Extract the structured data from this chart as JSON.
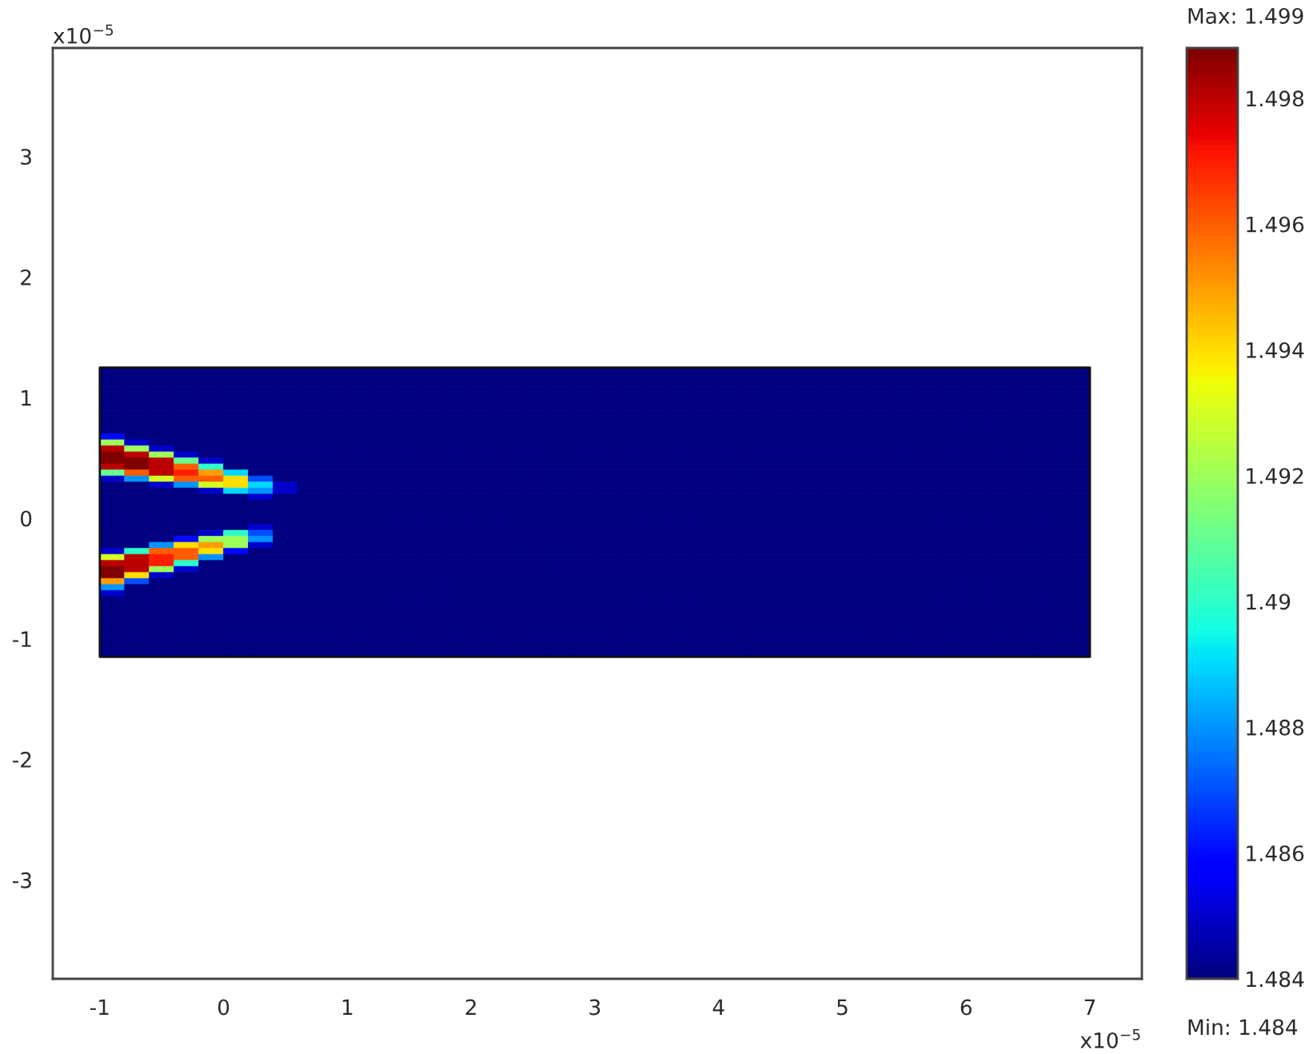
{
  "chart_data": {
    "type": "heatmap",
    "x": [
      -0.9,
      -0.7,
      -0.5,
      -0.3,
      -0.1,
      0.1,
      0.3,
      0.5,
      0.7,
      0.9,
      1.1,
      1.3,
      1.5,
      1.7,
      1.9,
      2.1,
      2.3,
      2.5,
      2.7,
      2.9,
      3.1,
      3.3,
      3.5,
      3.7,
      3.9,
      4.1,
      4.3,
      4.5,
      4.7,
      4.9,
      5.1,
      5.3,
      5.5,
      5.7,
      5.9,
      6.1,
      6.3,
      6.5,
      6.7,
      6.9
    ],
    "y": [
      1.225,
      1.175,
      1.125,
      1.075,
      1.025,
      0.975,
      0.925,
      0.875,
      0.825,
      0.775,
      0.725,
      0.675,
      0.625,
      0.575,
      0.525,
      0.475,
      0.425,
      0.375,
      0.325,
      0.275,
      0.225,
      0.175,
      0.125,
      0.075,
      0.025,
      -0.025,
      -0.075,
      -0.125,
      -0.175,
      -0.225,
      -0.275,
      -0.325,
      -0.375,
      -0.425,
      -0.475,
      -0.525,
      -0.575,
      -0.625,
      -0.675,
      -0.725,
      -0.775,
      -0.825,
      -0.875,
      -0.925,
      -0.975,
      -1.025,
      -1.075,
      -1.125
    ],
    "cells": [
      [
        1.484,
        1.484,
        1.484,
        1.484,
        1.484,
        1.484,
        1.484,
        1.484,
        1.484,
        1.484,
        1.484,
        1.484,
        1.484,
        1.484,
        1.484,
        1.484,
        1.484,
        1.484,
        1.484,
        1.484,
        1.484,
        1.484,
        1.484,
        1.484,
        1.484,
        1.484,
        1.484,
        1.484,
        1.484,
        1.484,
        1.484,
        1.484,
        1.484,
        1.484,
        1.484,
        1.484,
        1.484,
        1.484,
        1.484,
        1.484
      ],
      [
        1.484,
        1.484,
        1.484,
        1.484,
        1.484,
        1.484,
        1.484,
        1.484,
        1.484,
        1.484,
        1.484,
        1.484,
        1.484,
        1.484,
        1.484,
        1.484,
        1.484,
        1.484,
        1.484,
        1.484,
        1.484,
        1.484,
        1.484,
        1.484,
        1.484,
        1.484,
        1.484,
        1.484,
        1.484,
        1.484,
        1.484,
        1.484,
        1.484,
        1.484,
        1.484,
        1.484,
        1.484,
        1.484,
        1.484,
        1.484
      ],
      [
        1.484,
        1.484,
        1.484,
        1.484,
        1.484,
        1.484,
        1.484,
        1.484,
        1.484,
        1.484,
        1.484,
        1.484,
        1.484,
        1.484,
        1.484,
        1.484,
        1.484,
        1.484,
        1.484,
        1.484,
        1.484,
        1.484,
        1.484,
        1.484,
        1.484,
        1.484,
        1.484,
        1.484,
        1.484,
        1.484,
        1.484,
        1.484,
        1.484,
        1.484,
        1.484,
        1.484,
        1.484,
        1.484,
        1.484,
        1.484
      ],
      [
        1.484,
        1.484,
        1.484,
        1.484,
        1.484,
        1.484,
        1.484,
        1.484,
        1.484,
        1.484,
        1.484,
        1.484,
        1.484,
        1.484,
        1.484,
        1.484,
        1.484,
        1.484,
        1.484,
        1.484,
        1.484,
        1.484,
        1.484,
        1.484,
        1.484,
        1.484,
        1.484,
        1.484,
        1.484,
        1.484,
        1.484,
        1.484,
        1.484,
        1.484,
        1.484,
        1.484,
        1.484,
        1.484,
        1.484,
        1.484
      ],
      [
        1.484,
        1.484,
        1.484,
        1.484,
        1.484,
        1.484,
        1.484,
        1.484,
        1.484,
        1.484,
        1.484,
        1.484,
        1.484,
        1.484,
        1.484,
        1.484,
        1.484,
        1.484,
        1.484,
        1.484,
        1.484,
        1.484,
        1.484,
        1.484,
        1.484,
        1.484,
        1.484,
        1.484,
        1.484,
        1.484,
        1.484,
        1.484,
        1.484,
        1.484,
        1.484,
        1.484,
        1.484,
        1.484,
        1.484,
        1.484
      ],
      [
        1.484,
        1.484,
        1.484,
        1.484,
        1.484,
        1.484,
        1.484,
        1.484,
        1.484,
        1.484,
        1.484,
        1.484,
        1.484,
        1.484,
        1.484,
        1.484,
        1.484,
        1.484,
        1.484,
        1.484,
        1.484,
        1.484,
        1.484,
        1.484,
        1.484,
        1.484,
        1.484,
        1.484,
        1.484,
        1.484,
        1.484,
        1.484,
        1.484,
        1.484,
        1.484,
        1.484,
        1.484,
        1.484,
        1.484,
        1.484
      ],
      [
        1.484,
        1.484,
        1.484,
        1.484,
        1.484,
        1.484,
        1.484,
        1.484,
        1.484,
        1.484,
        1.484,
        1.484,
        1.484,
        1.484,
        1.484,
        1.484,
        1.484,
        1.484,
        1.484,
        1.484,
        1.484,
        1.484,
        1.484,
        1.484,
        1.484,
        1.484,
        1.484,
        1.484,
        1.484,
        1.484,
        1.484,
        1.484,
        1.484,
        1.484,
        1.484,
        1.484,
        1.484,
        1.484,
        1.484,
        1.484
      ],
      [
        1.484,
        1.484,
        1.484,
        1.484,
        1.484,
        1.484,
        1.484,
        1.484,
        1.484,
        1.484,
        1.484,
        1.484,
        1.484,
        1.484,
        1.484,
        1.484,
        1.484,
        1.484,
        1.484,
        1.484,
        1.484,
        1.484,
        1.484,
        1.484,
        1.484,
        1.484,
        1.484,
        1.484,
        1.484,
        1.484,
        1.484,
        1.484,
        1.484,
        1.484,
        1.484,
        1.484,
        1.484,
        1.484,
        1.484,
        1.484
      ],
      [
        1.484,
        1.484,
        1.484,
        1.484,
        1.484,
        1.484,
        1.484,
        1.484,
        1.484,
        1.484,
        1.484,
        1.484,
        1.484,
        1.484,
        1.484,
        1.484,
        1.484,
        1.484,
        1.484,
        1.484,
        1.484,
        1.484,
        1.484,
        1.484,
        1.484,
        1.484,
        1.484,
        1.484,
        1.484,
        1.484,
        1.484,
        1.484,
        1.484,
        1.484,
        1.484,
        1.484,
        1.484,
        1.484,
        1.484,
        1.484
      ],
      [
        1.484,
        1.484,
        1.484,
        1.484,
        1.484,
        1.484,
        1.484,
        1.484,
        1.484,
        1.484,
        1.484,
        1.484,
        1.484,
        1.484,
        1.484,
        1.484,
        1.484,
        1.484,
        1.484,
        1.484,
        1.484,
        1.484,
        1.484,
        1.484,
        1.484,
        1.484,
        1.484,
        1.484,
        1.484,
        1.484,
        1.484,
        1.484,
        1.484,
        1.484,
        1.484,
        1.484,
        1.484,
        1.484,
        1.484,
        1.484
      ],
      [
        1.484,
        1.484,
        1.484,
        1.484,
        1.484,
        1.484,
        1.484,
        1.484,
        1.484,
        1.484,
        1.484,
        1.484,
        1.484,
        1.484,
        1.484,
        1.484,
        1.484,
        1.484,
        1.484,
        1.484,
        1.484,
        1.484,
        1.484,
        1.484,
        1.484,
        1.484,
        1.484,
        1.484,
        1.484,
        1.484,
        1.484,
        1.484,
        1.484,
        1.484,
        1.484,
        1.484,
        1.484,
        1.484,
        1.484,
        1.484
      ],
      [
        1.486,
        1.484,
        1.484,
        1.484,
        1.484,
        1.484,
        1.484,
        1.484,
        1.484,
        1.484,
        1.484,
        1.484,
        1.484,
        1.484,
        1.484,
        1.484,
        1.484,
        1.484,
        1.484,
        1.484,
        1.484,
        1.484,
        1.484,
        1.484,
        1.484,
        1.484,
        1.484,
        1.484,
        1.484,
        1.484,
        1.484,
        1.484,
        1.484,
        1.484,
        1.484,
        1.484,
        1.484,
        1.484,
        1.484,
        1.484
      ],
      [
        1.492,
        1.485,
        1.484,
        1.484,
        1.484,
        1.484,
        1.484,
        1.484,
        1.484,
        1.484,
        1.484,
        1.484,
        1.484,
        1.484,
        1.484,
        1.484,
        1.484,
        1.484,
        1.484,
        1.484,
        1.484,
        1.484,
        1.484,
        1.484,
        1.484,
        1.484,
        1.484,
        1.484,
        1.484,
        1.484,
        1.484,
        1.484,
        1.484,
        1.484,
        1.484,
        1.484,
        1.484,
        1.484,
        1.484,
        1.484
      ],
      [
        1.498,
        1.492,
        1.485,
        1.484,
        1.484,
        1.484,
        1.484,
        1.484,
        1.484,
        1.484,
        1.484,
        1.484,
        1.484,
        1.484,
        1.484,
        1.484,
        1.484,
        1.484,
        1.484,
        1.484,
        1.484,
        1.484,
        1.484,
        1.484,
        1.484,
        1.484,
        1.484,
        1.484,
        1.484,
        1.484,
        1.484,
        1.484,
        1.484,
        1.484,
        1.484,
        1.484,
        1.484,
        1.484,
        1.484,
        1.484
      ],
      [
        1.4988,
        1.498,
        1.492,
        1.485,
        1.484,
        1.484,
        1.484,
        1.484,
        1.484,
        1.484,
        1.484,
        1.484,
        1.484,
        1.484,
        1.484,
        1.484,
        1.484,
        1.484,
        1.484,
        1.484,
        1.484,
        1.484,
        1.484,
        1.484,
        1.484,
        1.484,
        1.484,
        1.484,
        1.484,
        1.484,
        1.484,
        1.484,
        1.484,
        1.484,
        1.484,
        1.484,
        1.484,
        1.484,
        1.484,
        1.484
      ],
      [
        1.4988,
        1.4988,
        1.498,
        1.491,
        1.485,
        1.484,
        1.484,
        1.484,
        1.484,
        1.484,
        1.484,
        1.484,
        1.484,
        1.484,
        1.484,
        1.484,
        1.484,
        1.484,
        1.484,
        1.484,
        1.484,
        1.484,
        1.484,
        1.484,
        1.484,
        1.484,
        1.484,
        1.484,
        1.484,
        1.484,
        1.484,
        1.484,
        1.484,
        1.484,
        1.484,
        1.484,
        1.484,
        1.484,
        1.484,
        1.484
      ],
      [
        1.498,
        1.4988,
        1.498,
        1.496,
        1.49,
        1.484,
        1.484,
        1.484,
        1.484,
        1.484,
        1.484,
        1.484,
        1.484,
        1.484,
        1.484,
        1.484,
        1.484,
        1.484,
        1.484,
        1.484,
        1.484,
        1.484,
        1.484,
        1.484,
        1.484,
        1.484,
        1.484,
        1.484,
        1.484,
        1.484,
        1.484,
        1.484,
        1.484,
        1.484,
        1.484,
        1.484,
        1.484,
        1.484,
        1.484,
        1.484
      ],
      [
        1.491,
        1.496,
        1.498,
        1.497,
        1.495,
        1.489,
        1.484,
        1.484,
        1.484,
        1.484,
        1.484,
        1.484,
        1.484,
        1.484,
        1.484,
        1.484,
        1.484,
        1.484,
        1.484,
        1.484,
        1.484,
        1.484,
        1.484,
        1.484,
        1.484,
        1.484,
        1.484,
        1.484,
        1.484,
        1.484,
        1.484,
        1.484,
        1.484,
        1.484,
        1.484,
        1.484,
        1.484,
        1.484,
        1.484,
        1.484
      ],
      [
        1.485,
        1.488,
        1.493,
        1.496,
        1.496,
        1.494,
        1.487,
        1.484,
        1.484,
        1.484,
        1.484,
        1.484,
        1.484,
        1.484,
        1.484,
        1.484,
        1.484,
        1.484,
        1.484,
        1.484,
        1.484,
        1.484,
        1.484,
        1.484,
        1.484,
        1.484,
        1.484,
        1.484,
        1.484,
        1.484,
        1.484,
        1.484,
        1.484,
        1.484,
        1.484,
        1.484,
        1.484,
        1.484,
        1.484,
        1.484
      ],
      [
        1.484,
        1.484,
        1.485,
        1.488,
        1.493,
        1.494,
        1.489,
        1.485,
        1.484,
        1.484,
        1.484,
        1.484,
        1.484,
        1.484,
        1.484,
        1.484,
        1.484,
        1.484,
        1.484,
        1.484,
        1.484,
        1.484,
        1.484,
        1.484,
        1.484,
        1.484,
        1.484,
        1.484,
        1.484,
        1.484,
        1.484,
        1.484,
        1.484,
        1.484,
        1.484,
        1.484,
        1.484,
        1.484,
        1.484,
        1.484
      ],
      [
        1.484,
        1.484,
        1.484,
        1.484,
        1.485,
        1.489,
        1.488,
        1.485,
        1.484,
        1.484,
        1.484,
        1.484,
        1.484,
        1.484,
        1.484,
        1.484,
        1.484,
        1.484,
        1.484,
        1.484,
        1.484,
        1.484,
        1.484,
        1.484,
        1.484,
        1.484,
        1.484,
        1.484,
        1.484,
        1.484,
        1.484,
        1.484,
        1.484,
        1.484,
        1.484,
        1.484,
        1.484,
        1.484,
        1.484,
        1.484
      ],
      [
        1.484,
        1.484,
        1.484,
        1.484,
        1.484,
        1.484,
        1.485,
        1.484,
        1.484,
        1.484,
        1.484,
        1.484,
        1.484,
        1.484,
        1.484,
        1.484,
        1.484,
        1.484,
        1.484,
        1.484,
        1.484,
        1.484,
        1.484,
        1.484,
        1.484,
        1.484,
        1.484,
        1.484,
        1.484,
        1.484,
        1.484,
        1.484,
        1.484,
        1.484,
        1.484,
        1.484,
        1.484,
        1.484,
        1.484,
        1.484
      ],
      [
        1.484,
        1.484,
        1.484,
        1.484,
        1.484,
        1.484,
        1.484,
        1.484,
        1.484,
        1.484,
        1.484,
        1.484,
        1.484,
        1.484,
        1.484,
        1.484,
        1.484,
        1.484,
        1.484,
        1.484,
        1.484,
        1.484,
        1.484,
        1.484,
        1.484,
        1.484,
        1.484,
        1.484,
        1.484,
        1.484,
        1.484,
        1.484,
        1.484,
        1.484,
        1.484,
        1.484,
        1.484,
        1.484,
        1.484,
        1.484
      ],
      [
        1.484,
        1.484,
        1.484,
        1.484,
        1.484,
        1.484,
        1.484,
        1.484,
        1.484,
        1.484,
        1.484,
        1.484,
        1.484,
        1.484,
        1.484,
        1.484,
        1.484,
        1.484,
        1.484,
        1.484,
        1.484,
        1.484,
        1.484,
        1.484,
        1.484,
        1.484,
        1.484,
        1.484,
        1.484,
        1.484,
        1.484,
        1.484,
        1.484,
        1.484,
        1.484,
        1.484,
        1.484,
        1.484,
        1.484,
        1.484
      ],
      [
        1.484,
        1.484,
        1.484,
        1.484,
        1.484,
        1.484,
        1.484,
        1.484,
        1.484,
        1.484,
        1.484,
        1.484,
        1.484,
        1.484,
        1.484,
        1.484,
        1.484,
        1.484,
        1.484,
        1.484,
        1.484,
        1.484,
        1.484,
        1.484,
        1.484,
        1.484,
        1.484,
        1.484,
        1.484,
        1.484,
        1.484,
        1.484,
        1.484,
        1.484,
        1.484,
        1.484,
        1.484,
        1.484,
        1.484,
        1.484
      ],
      [
        1.484,
        1.484,
        1.484,
        1.484,
        1.484,
        1.484,
        1.484,
        1.484,
        1.484,
        1.484,
        1.484,
        1.484,
        1.484,
        1.484,
        1.484,
        1.484,
        1.484,
        1.484,
        1.484,
        1.484,
        1.484,
        1.484,
        1.484,
        1.484,
        1.484,
        1.484,
        1.484,
        1.484,
        1.484,
        1.484,
        1.484,
        1.484,
        1.484,
        1.484,
        1.484,
        1.484,
        1.484,
        1.484,
        1.484,
        1.484
      ],
      [
        1.484,
        1.484,
        1.484,
        1.484,
        1.484,
        1.484,
        1.485,
        1.484,
        1.484,
        1.484,
        1.484,
        1.484,
        1.484,
        1.484,
        1.484,
        1.484,
        1.484,
        1.484,
        1.484,
        1.484,
        1.484,
        1.484,
        1.484,
        1.484,
        1.484,
        1.484,
        1.484,
        1.484,
        1.484,
        1.484,
        1.484,
        1.484,
        1.484,
        1.484,
        1.484,
        1.484,
        1.484,
        1.484,
        1.484,
        1.484
      ],
      [
        1.484,
        1.484,
        1.484,
        1.484,
        1.485,
        1.49,
        1.487,
        1.484,
        1.484,
        1.484,
        1.484,
        1.484,
        1.484,
        1.484,
        1.484,
        1.484,
        1.484,
        1.484,
        1.484,
        1.484,
        1.484,
        1.484,
        1.484,
        1.484,
        1.484,
        1.484,
        1.484,
        1.484,
        1.484,
        1.484,
        1.484,
        1.484,
        1.484,
        1.484,
        1.484,
        1.484,
        1.484,
        1.484,
        1.484,
        1.484
      ],
      [
        1.484,
        1.484,
        1.484,
        1.486,
        1.492,
        1.492,
        1.488,
        1.484,
        1.484,
        1.484,
        1.484,
        1.484,
        1.484,
        1.484,
        1.484,
        1.484,
        1.484,
        1.484,
        1.484,
        1.484,
        1.484,
        1.484,
        1.484,
        1.484,
        1.484,
        1.484,
        1.484,
        1.484,
        1.484,
        1.484,
        1.484,
        1.484,
        1.484,
        1.484,
        1.484,
        1.484,
        1.484,
        1.484,
        1.484,
        1.484
      ],
      [
        1.484,
        1.484,
        1.488,
        1.494,
        1.495,
        1.492,
        1.485,
        1.484,
        1.484,
        1.484,
        1.484,
        1.484,
        1.484,
        1.484,
        1.484,
        1.484,
        1.484,
        1.484,
        1.484,
        1.484,
        1.484,
        1.484,
        1.484,
        1.484,
        1.484,
        1.484,
        1.484,
        1.484,
        1.484,
        1.484,
        1.484,
        1.484,
        1.484,
        1.484,
        1.484,
        1.484,
        1.484,
        1.484,
        1.484,
        1.484
      ],
      [
        1.485,
        1.49,
        1.496,
        1.496,
        1.494,
        1.486,
        1.484,
        1.484,
        1.484,
        1.484,
        1.484,
        1.484,
        1.484,
        1.484,
        1.484,
        1.484,
        1.484,
        1.484,
        1.484,
        1.484,
        1.484,
        1.484,
        1.484,
        1.484,
        1.484,
        1.484,
        1.484,
        1.484,
        1.484,
        1.484,
        1.484,
        1.484,
        1.484,
        1.484,
        1.484,
        1.484,
        1.484,
        1.484,
        1.484,
        1.484
      ],
      [
        1.493,
        1.498,
        1.497,
        1.496,
        1.488,
        1.484,
        1.484,
        1.484,
        1.484,
        1.484,
        1.484,
        1.484,
        1.484,
        1.484,
        1.484,
        1.484,
        1.484,
        1.484,
        1.484,
        1.484,
        1.484,
        1.484,
        1.484,
        1.484,
        1.484,
        1.484,
        1.484,
        1.484,
        1.484,
        1.484,
        1.484,
        1.484,
        1.484,
        1.484,
        1.484,
        1.484,
        1.484,
        1.484,
        1.484,
        1.484
      ],
      [
        1.498,
        1.498,
        1.497,
        1.49,
        1.484,
        1.484,
        1.484,
        1.484,
        1.484,
        1.484,
        1.484,
        1.484,
        1.484,
        1.484,
        1.484,
        1.484,
        1.484,
        1.484,
        1.484,
        1.484,
        1.484,
        1.484,
        1.484,
        1.484,
        1.484,
        1.484,
        1.484,
        1.484,
        1.484,
        1.484,
        1.484,
        1.484,
        1.484,
        1.484,
        1.484,
        1.484,
        1.484,
        1.484,
        1.484,
        1.484
      ],
      [
        1.4988,
        1.498,
        1.492,
        1.485,
        1.484,
        1.484,
        1.484,
        1.484,
        1.484,
        1.484,
        1.484,
        1.484,
        1.484,
        1.484,
        1.484,
        1.484,
        1.484,
        1.484,
        1.484,
        1.484,
        1.484,
        1.484,
        1.484,
        1.484,
        1.484,
        1.484,
        1.484,
        1.484,
        1.484,
        1.484,
        1.484,
        1.484,
        1.484,
        1.484,
        1.484,
        1.484,
        1.484,
        1.484,
        1.484,
        1.484
      ],
      [
        1.4988,
        1.494,
        1.485,
        1.484,
        1.484,
        1.484,
        1.484,
        1.484,
        1.484,
        1.484,
        1.484,
        1.484,
        1.484,
        1.484,
        1.484,
        1.484,
        1.484,
        1.484,
        1.484,
        1.484,
        1.484,
        1.484,
        1.484,
        1.484,
        1.484,
        1.484,
        1.484,
        1.484,
        1.484,
        1.484,
        1.484,
        1.484,
        1.484,
        1.484,
        1.484,
        1.484,
        1.484,
        1.484,
        1.484,
        1.484
      ],
      [
        1.495,
        1.487,
        1.484,
        1.484,
        1.484,
        1.484,
        1.484,
        1.484,
        1.484,
        1.484,
        1.484,
        1.484,
        1.484,
        1.484,
        1.484,
        1.484,
        1.484,
        1.484,
        1.484,
        1.484,
        1.484,
        1.484,
        1.484,
        1.484,
        1.484,
        1.484,
        1.484,
        1.484,
        1.484,
        1.484,
        1.484,
        1.484,
        1.484,
        1.484,
        1.484,
        1.484,
        1.484,
        1.484,
        1.484,
        1.484
      ],
      [
        1.488,
        1.484,
        1.484,
        1.484,
        1.484,
        1.484,
        1.484,
        1.484,
        1.484,
        1.484,
        1.484,
        1.484,
        1.484,
        1.484,
        1.484,
        1.484,
        1.484,
        1.484,
        1.484,
        1.484,
        1.484,
        1.484,
        1.484,
        1.484,
        1.484,
        1.484,
        1.484,
        1.484,
        1.484,
        1.484,
        1.484,
        1.484,
        1.484,
        1.484,
        1.484,
        1.484,
        1.484,
        1.484,
        1.484,
        1.484
      ],
      [
        1.485,
        1.484,
        1.484,
        1.484,
        1.484,
        1.484,
        1.484,
        1.484,
        1.484,
        1.484,
        1.484,
        1.484,
        1.484,
        1.484,
        1.484,
        1.484,
        1.484,
        1.484,
        1.484,
        1.484,
        1.484,
        1.484,
        1.484,
        1.484,
        1.484,
        1.484,
        1.484,
        1.484,
        1.484,
        1.484,
        1.484,
        1.484,
        1.484,
        1.484,
        1.484,
        1.484,
        1.484,
        1.484,
        1.484,
        1.484
      ],
      [
        1.484,
        1.484,
        1.484,
        1.484,
        1.484,
        1.484,
        1.484,
        1.484,
        1.484,
        1.484,
        1.484,
        1.484,
        1.484,
        1.484,
        1.484,
        1.484,
        1.484,
        1.484,
        1.484,
        1.484,
        1.484,
        1.484,
        1.484,
        1.484,
        1.484,
        1.484,
        1.484,
        1.484,
        1.484,
        1.484,
        1.484,
        1.484,
        1.484,
        1.484,
        1.484,
        1.484,
        1.484,
        1.484,
        1.484,
        1.484
      ],
      [
        1.484,
        1.484,
        1.484,
        1.484,
        1.484,
        1.484,
        1.484,
        1.484,
        1.484,
        1.484,
        1.484,
        1.484,
        1.484,
        1.484,
        1.484,
        1.484,
        1.484,
        1.484,
        1.484,
        1.484,
        1.484,
        1.484,
        1.484,
        1.484,
        1.484,
        1.484,
        1.484,
        1.484,
        1.484,
        1.484,
        1.484,
        1.484,
        1.484,
        1.484,
        1.484,
        1.484,
        1.484,
        1.484,
        1.484,
        1.484
      ],
      [
        1.484,
        1.484,
        1.484,
        1.484,
        1.484,
        1.484,
        1.484,
        1.484,
        1.484,
        1.484,
        1.484,
        1.484,
        1.484,
        1.484,
        1.484,
        1.484,
        1.484,
        1.484,
        1.484,
        1.484,
        1.484,
        1.484,
        1.484,
        1.484,
        1.484,
        1.484,
        1.484,
        1.484,
        1.484,
        1.484,
        1.484,
        1.484,
        1.484,
        1.484,
        1.484,
        1.484,
        1.484,
        1.484,
        1.484,
        1.484
      ],
      [
        1.484,
        1.484,
        1.484,
        1.484,
        1.484,
        1.484,
        1.484,
        1.484,
        1.484,
        1.484,
        1.484,
        1.484,
        1.484,
        1.484,
        1.484,
        1.484,
        1.484,
        1.484,
        1.484,
        1.484,
        1.484,
        1.484,
        1.484,
        1.484,
        1.484,
        1.484,
        1.484,
        1.484,
        1.484,
        1.484,
        1.484,
        1.484,
        1.484,
        1.484,
        1.484,
        1.484,
        1.484,
        1.484,
        1.484,
        1.484
      ],
      [
        1.484,
        1.484,
        1.484,
        1.484,
        1.484,
        1.484,
        1.484,
        1.484,
        1.484,
        1.484,
        1.484,
        1.484,
        1.484,
        1.484,
        1.484,
        1.484,
        1.484,
        1.484,
        1.484,
        1.484,
        1.484,
        1.484,
        1.484,
        1.484,
        1.484,
        1.484,
        1.484,
        1.484,
        1.484,
        1.484,
        1.484,
        1.484,
        1.484,
        1.484,
        1.484,
        1.484,
        1.484,
        1.484,
        1.484,
        1.484
      ],
      [
        1.484,
        1.484,
        1.484,
        1.484,
        1.484,
        1.484,
        1.484,
        1.484,
        1.484,
        1.484,
        1.484,
        1.484,
        1.484,
        1.484,
        1.484,
        1.484,
        1.484,
        1.484,
        1.484,
        1.484,
        1.484,
        1.484,
        1.484,
        1.484,
        1.484,
        1.484,
        1.484,
        1.484,
        1.484,
        1.484,
        1.484,
        1.484,
        1.484,
        1.484,
        1.484,
        1.484,
        1.484,
        1.484,
        1.484,
        1.484
      ],
      [
        1.484,
        1.484,
        1.484,
        1.484,
        1.484,
        1.484,
        1.484,
        1.484,
        1.484,
        1.484,
        1.484,
        1.484,
        1.484,
        1.484,
        1.484,
        1.484,
        1.484,
        1.484,
        1.484,
        1.484,
        1.484,
        1.484,
        1.484,
        1.484,
        1.484,
        1.484,
        1.484,
        1.484,
        1.484,
        1.484,
        1.484,
        1.484,
        1.484,
        1.484,
        1.484,
        1.484,
        1.484,
        1.484,
        1.484,
        1.484
      ],
      [
        1.484,
        1.484,
        1.484,
        1.484,
        1.484,
        1.484,
        1.484,
        1.484,
        1.484,
        1.484,
        1.484,
        1.484,
        1.484,
        1.484,
        1.484,
        1.484,
        1.484,
        1.484,
        1.484,
        1.484,
        1.484,
        1.484,
        1.484,
        1.484,
        1.484,
        1.484,
        1.484,
        1.484,
        1.484,
        1.484,
        1.484,
        1.484,
        1.484,
        1.484,
        1.484,
        1.484,
        1.484,
        1.484,
        1.484,
        1.484
      ],
      [
        1.484,
        1.484,
        1.484,
        1.484,
        1.484,
        1.484,
        1.484,
        1.484,
        1.484,
        1.484,
        1.484,
        1.484,
        1.484,
        1.484,
        1.484,
        1.484,
        1.484,
        1.484,
        1.484,
        1.484,
        1.484,
        1.484,
        1.484,
        1.484,
        1.484,
        1.484,
        1.484,
        1.484,
        1.484,
        1.484,
        1.484,
        1.484,
        1.484,
        1.484,
        1.484,
        1.484,
        1.484,
        1.484,
        1.484,
        1.484
      ],
      [
        1.484,
        1.484,
        1.484,
        1.484,
        1.484,
        1.484,
        1.484,
        1.484,
        1.484,
        1.484,
        1.484,
        1.484,
        1.484,
        1.484,
        1.484,
        1.484,
        1.484,
        1.484,
        1.484,
        1.484,
        1.484,
        1.484,
        1.484,
        1.484,
        1.484,
        1.484,
        1.484,
        1.484,
        1.484,
        1.484,
        1.484,
        1.484,
        1.484,
        1.484,
        1.484,
        1.484,
        1.484,
        1.484,
        1.484,
        1.484
      ]
    ],
    "clim": [
      1.484,
      1.4988
    ],
    "cticks": [
      1.484,
      1.486,
      1.488,
      1.49,
      1.492,
      1.494,
      1.496,
      1.498
    ],
    "xlim": [
      -1.38,
      7.42
    ],
    "ylim": [
      -3.82,
      3.9
    ],
    "xticks": [
      -1,
      0,
      1,
      2,
      3,
      4,
      5,
      6,
      7
    ],
    "yticks": [
      -3,
      -2,
      -1,
      0,
      1,
      2,
      3
    ],
    "annotations": [
      "x10$^{−5}$",
      "x10$^{−5}$",
      "Max: 1.499",
      "Min: 1.484"
    ]
  }
}
